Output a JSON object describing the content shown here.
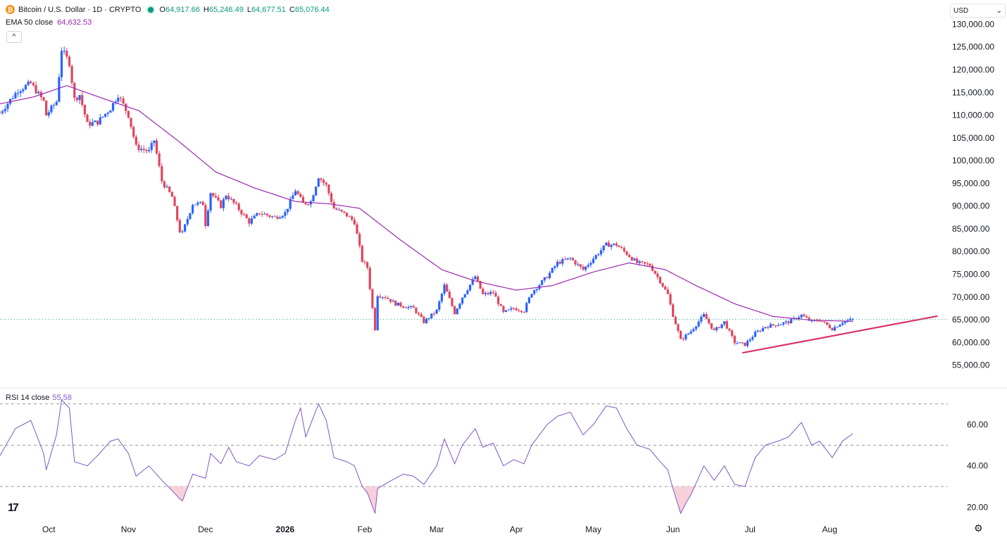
{
  "header": {
    "coin_glyph": "₿",
    "symbol_title": "Bitcoin / U.S. Dollar · 1D · CRYPTO",
    "ohlc": {
      "o_label": "O",
      "o": "64,917.66",
      "h_label": "H",
      "h": "65,246.49",
      "l_label": "L",
      "l": "64,677.51",
      "c_label": "C",
      "c": "65,076.44"
    },
    "ema_label": "EMA 50 close",
    "ema_value": "64,632.53",
    "collapse_glyph": "^"
  },
  "currency": {
    "value": "USD",
    "chevron": "⌄"
  },
  "rsi": {
    "label": "RSI 14 close",
    "value": "55.58"
  },
  "footer": {
    "logo": "17",
    "settings_icon": "⚙"
  },
  "colors": {
    "up": "#2962ff",
    "down": "#e0455e",
    "ema": "#9c27b0",
    "rsi_line": "#7e57c2",
    "trendline": "#d6336c",
    "oversold_fill": "#f6c9d3"
  },
  "chart_data": [
    {
      "type": "candlestick",
      "title": "Bitcoin / U.S. Dollar · 1D · CRYPTO",
      "y_axis": {
        "min": 52000,
        "max": 131000,
        "ticks": [
          55000,
          60000,
          65000,
          70000,
          75000,
          80000,
          85000,
          90000,
          95000,
          100000,
          105000,
          110000,
          115000,
          120000,
          125000,
          130000
        ],
        "tick_labels": [
          "55,000.00",
          "60,000.00",
          "65,000.00",
          "70,000.00",
          "75,000.00",
          "80,000.00",
          "85,000.00",
          "90,000.00",
          "95,000.00",
          "100,000.00",
          "105,000.00",
          "110,000.00",
          "115,000.00",
          "120,000.00",
          "125,000.00",
          "130,000.00"
        ]
      },
      "x_axis": {
        "start_date": "2025-09-12",
        "end_date": "2026-09-16",
        "ticks": [
          {
            "date": "2025-10-01",
            "label": "Oct",
            "bold": false
          },
          {
            "date": "2025-11-01",
            "label": "Nov",
            "bold": false
          },
          {
            "date": "2025-12-01",
            "label": "Dec",
            "bold": false
          },
          {
            "date": "2026-01-01",
            "label": "2026",
            "bold": true
          },
          {
            "date": "2026-02-01",
            "label": "Feb",
            "bold": false
          },
          {
            "date": "2026-03-01",
            "label": "Mar",
            "bold": false
          },
          {
            "date": "2026-04-01",
            "label": "Apr",
            "bold": false
          },
          {
            "date": "2026-05-01",
            "label": "May",
            "bold": false
          },
          {
            "date": "2026-06-01",
            "label": "Jun",
            "bold": false
          },
          {
            "date": "2026-07-01",
            "label": "Jul",
            "bold": false
          },
          {
            "date": "2026-08-01",
            "label": "Aug",
            "bold": false
          }
        ]
      },
      "close_keyframes": [
        {
          "date": "2025-09-12",
          "close": 110500
        },
        {
          "date": "2025-09-19",
          "close": 115500
        },
        {
          "date": "2025-09-24",
          "close": 117000
        },
        {
          "date": "2025-09-29",
          "close": 113000
        },
        {
          "date": "2025-09-30",
          "close": 110000
        },
        {
          "date": "2025-10-04",
          "close": 113000
        },
        {
          "date": "2025-10-06",
          "close": 124500
        },
        {
          "date": "2025-10-09",
          "close": 121500
        },
        {
          "date": "2025-10-11",
          "close": 113500
        },
        {
          "date": "2025-10-13",
          "close": 114500
        },
        {
          "date": "2025-10-16",
          "close": 108000
        },
        {
          "date": "2025-10-20",
          "close": 108500
        },
        {
          "date": "2025-10-25",
          "close": 111500
        },
        {
          "date": "2025-10-28",
          "close": 114500
        },
        {
          "date": "2025-11-01",
          "close": 110000
        },
        {
          "date": "2025-11-04",
          "close": 103000
        },
        {
          "date": "2025-11-09",
          "close": 102000
        },
        {
          "date": "2025-11-11",
          "close": 104500
        },
        {
          "date": "2025-11-14",
          "close": 95500
        },
        {
          "date": "2025-11-18",
          "close": 92000
        },
        {
          "date": "2025-11-21",
          "close": 84500
        },
        {
          "date": "2025-11-22",
          "close": 84000
        },
        {
          "date": "2025-11-26",
          "close": 90500
        },
        {
          "date": "2025-11-30",
          "close": 90500
        },
        {
          "date": "2025-12-01",
          "close": 86000
        },
        {
          "date": "2025-12-03",
          "close": 93000
        },
        {
          "date": "2025-12-07",
          "close": 90000
        },
        {
          "date": "2025-12-09",
          "close": 92500
        },
        {
          "date": "2025-12-13",
          "close": 90000
        },
        {
          "date": "2025-12-18",
          "close": 86500
        },
        {
          "date": "2025-12-22",
          "close": 88500
        },
        {
          "date": "2025-12-28",
          "close": 87500
        },
        {
          "date": "2026-01-01",
          "close": 88500
        },
        {
          "date": "2026-01-05",
          "close": 93500
        },
        {
          "date": "2026-01-08",
          "close": 90500
        },
        {
          "date": "2026-01-11",
          "close": 91000
        },
        {
          "date": "2026-01-14",
          "close": 96500
        },
        {
          "date": "2026-01-17",
          "close": 94500
        },
        {
          "date": "2026-01-20",
          "close": 89500
        },
        {
          "date": "2026-01-25",
          "close": 88000
        },
        {
          "date": "2026-01-28",
          "close": 86500
        },
        {
          "date": "2026-01-31",
          "close": 78000
        },
        {
          "date": "2026-02-02",
          "close": 76500
        },
        {
          "date": "2026-02-05",
          "close": 63000
        },
        {
          "date": "2026-02-06",
          "close": 70500
        },
        {
          "date": "2026-02-09",
          "close": 70000
        },
        {
          "date": "2026-02-13",
          "close": 68500
        },
        {
          "date": "2026-02-16",
          "close": 68000
        },
        {
          "date": "2026-02-20",
          "close": 67500
        },
        {
          "date": "2026-02-24",
          "close": 64500
        },
        {
          "date": "2026-03-01",
          "close": 67000
        },
        {
          "date": "2026-03-04",
          "close": 72500
        },
        {
          "date": "2026-03-08",
          "close": 66500
        },
        {
          "date": "2026-03-11",
          "close": 70000
        },
        {
          "date": "2026-03-16",
          "close": 74500
        },
        {
          "date": "2026-03-19",
          "close": 70500
        },
        {
          "date": "2026-03-23",
          "close": 71000
        },
        {
          "date": "2026-03-27",
          "close": 66500
        },
        {
          "date": "2026-03-31",
          "close": 67500
        },
        {
          "date": "2026-04-04",
          "close": 67000
        },
        {
          "date": "2026-04-07",
          "close": 71000
        },
        {
          "date": "2026-04-13",
          "close": 74500
        },
        {
          "date": "2026-04-17",
          "close": 77500
        },
        {
          "date": "2026-04-22",
          "close": 78500
        },
        {
          "date": "2026-04-27",
          "close": 76000
        },
        {
          "date": "2026-05-01",
          "close": 78500
        },
        {
          "date": "2026-05-06",
          "close": 81500
        },
        {
          "date": "2026-05-10",
          "close": 81500
        },
        {
          "date": "2026-05-14",
          "close": 79500
        },
        {
          "date": "2026-05-18",
          "close": 77500
        },
        {
          "date": "2026-05-23",
          "close": 77000
        },
        {
          "date": "2026-05-27",
          "close": 73500
        },
        {
          "date": "2026-05-30",
          "close": 70500
        },
        {
          "date": "2026-06-01",
          "close": 66000
        },
        {
          "date": "2026-06-04",
          "close": 60500
        },
        {
          "date": "2026-06-08",
          "close": 62500
        },
        {
          "date": "2026-06-13",
          "close": 66000
        },
        {
          "date": "2026-06-17",
          "close": 62500
        },
        {
          "date": "2026-06-21",
          "close": 64500
        },
        {
          "date": "2026-06-25",
          "close": 60000
        },
        {
          "date": "2026-06-29",
          "close": 59500
        },
        {
          "date": "2026-07-03",
          "close": 62000
        },
        {
          "date": "2026-07-07",
          "close": 63500
        },
        {
          "date": "2026-07-12",
          "close": 64000
        },
        {
          "date": "2026-07-16",
          "close": 64500
        },
        {
          "date": "2026-07-21",
          "close": 66000
        },
        {
          "date": "2026-07-25",
          "close": 64500
        },
        {
          "date": "2026-07-28",
          "close": 65000
        },
        {
          "date": "2026-08-02",
          "close": 63000
        },
        {
          "date": "2026-08-06",
          "close": 64500
        },
        {
          "date": "2026-08-10",
          "close": 65076
        }
      ],
      "ema50_keyframes": [
        {
          "date": "2025-09-12",
          "value": 112500
        },
        {
          "date": "2025-09-25",
          "value": 114000
        },
        {
          "date": "2025-10-08",
          "value": 116500
        },
        {
          "date": "2025-10-23",
          "value": 113500
        },
        {
          "date": "2025-11-05",
          "value": 111000
        },
        {
          "date": "2025-11-20",
          "value": 104500
        },
        {
          "date": "2025-12-05",
          "value": 97500
        },
        {
          "date": "2025-12-20",
          "value": 94000
        },
        {
          "date": "2026-01-05",
          "value": 91000
        },
        {
          "date": "2026-01-18",
          "value": 90500
        },
        {
          "date": "2026-01-30",
          "value": 89500
        },
        {
          "date": "2026-02-15",
          "value": 82500
        },
        {
          "date": "2026-03-03",
          "value": 76000
        },
        {
          "date": "2026-03-16",
          "value": 73500
        },
        {
          "date": "2026-04-01",
          "value": 71500
        },
        {
          "date": "2026-04-15",
          "value": 72500
        },
        {
          "date": "2026-05-01",
          "value": 75500
        },
        {
          "date": "2026-05-15",
          "value": 77500
        },
        {
          "date": "2026-05-29",
          "value": 76000
        },
        {
          "date": "2026-06-10",
          "value": 72500
        },
        {
          "date": "2026-06-25",
          "value": 68500
        },
        {
          "date": "2026-07-10",
          "value": 65700
        },
        {
          "date": "2026-07-25",
          "value": 64900
        },
        {
          "date": "2026-08-10",
          "value": 64632
        }
      ],
      "trendline": [
        {
          "date": "2026-06-28",
          "value": 57700
        },
        {
          "date": "2026-09-12",
          "value": 65800
        }
      ],
      "last_price": 65076.44
    },
    {
      "type": "line",
      "title": "RSI 14 close",
      "y_axis": {
        "min": 14,
        "max": 76,
        "ticks": [
          20,
          40,
          60
        ],
        "tick_labels": [
          "20.00",
          "40.00",
          "60.00"
        ],
        "levels": [
          30,
          50,
          70
        ]
      },
      "rsi_keyframes": [
        {
          "date": "2025-09-12",
          "value": 45
        },
        {
          "date": "2025-09-18",
          "value": 58
        },
        {
          "date": "2025-09-24",
          "value": 62
        },
        {
          "date": "2025-09-29",
          "value": 46
        },
        {
          "date": "2025-09-30",
          "value": 38
        },
        {
          "date": "2025-10-04",
          "value": 55
        },
        {
          "date": "2025-10-06",
          "value": 72
        },
        {
          "date": "2025-10-09",
          "value": 68
        },
        {
          "date": "2025-10-11",
          "value": 42
        },
        {
          "date": "2025-10-16",
          "value": 40
        },
        {
          "date": "2025-10-20",
          "value": 45
        },
        {
          "date": "2025-10-25",
          "value": 52
        },
        {
          "date": "2025-10-28",
          "value": 53
        },
        {
          "date": "2025-11-01",
          "value": 46
        },
        {
          "date": "2025-11-04",
          "value": 35
        },
        {
          "date": "2025-11-09",
          "value": 40
        },
        {
          "date": "2025-11-14",
          "value": 33
        },
        {
          "date": "2025-11-18",
          "value": 28
        },
        {
          "date": "2025-11-21",
          "value": 24
        },
        {
          "date": "2025-11-22",
          "value": 23
        },
        {
          "date": "2025-11-26",
          "value": 36
        },
        {
          "date": "2025-12-01",
          "value": 34
        },
        {
          "date": "2025-12-03",
          "value": 46
        },
        {
          "date": "2025-12-07",
          "value": 41
        },
        {
          "date": "2025-12-10",
          "value": 49
        },
        {
          "date": "2025-12-13",
          "value": 42
        },
        {
          "date": "2025-12-18",
          "value": 40
        },
        {
          "date": "2025-12-22",
          "value": 45
        },
        {
          "date": "2025-12-28",
          "value": 43
        },
        {
          "date": "2026-01-01",
          "value": 46
        },
        {
          "date": "2026-01-05",
          "value": 62
        },
        {
          "date": "2026-01-07",
          "value": 68
        },
        {
          "date": "2026-01-09",
          "value": 54
        },
        {
          "date": "2026-01-14",
          "value": 70
        },
        {
          "date": "2026-01-17",
          "value": 62
        },
        {
          "date": "2026-01-20",
          "value": 44
        },
        {
          "date": "2026-01-25",
          "value": 42
        },
        {
          "date": "2026-01-28",
          "value": 40
        },
        {
          "date": "2026-01-31",
          "value": 30
        },
        {
          "date": "2026-02-02",
          "value": 27
        },
        {
          "date": "2026-02-05",
          "value": 17
        },
        {
          "date": "2026-02-06",
          "value": 29
        },
        {
          "date": "2026-02-10",
          "value": 32
        },
        {
          "date": "2026-02-16",
          "value": 36
        },
        {
          "date": "2026-02-20",
          "value": 35
        },
        {
          "date": "2026-02-24",
          "value": 31
        },
        {
          "date": "2026-03-01",
          "value": 40
        },
        {
          "date": "2026-03-04",
          "value": 53
        },
        {
          "date": "2026-03-08",
          "value": 41
        },
        {
          "date": "2026-03-11",
          "value": 50
        },
        {
          "date": "2026-03-16",
          "value": 58
        },
        {
          "date": "2026-03-19",
          "value": 49
        },
        {
          "date": "2026-03-23",
          "value": 51
        },
        {
          "date": "2026-03-27",
          "value": 40
        },
        {
          "date": "2026-03-31",
          "value": 43
        },
        {
          "date": "2026-04-04",
          "value": 41
        },
        {
          "date": "2026-04-07",
          "value": 50
        },
        {
          "date": "2026-04-13",
          "value": 60
        },
        {
          "date": "2026-04-17",
          "value": 64
        },
        {
          "date": "2026-04-22",
          "value": 66
        },
        {
          "date": "2026-04-27",
          "value": 55
        },
        {
          "date": "2026-05-01",
          "value": 60
        },
        {
          "date": "2026-05-06",
          "value": 69
        },
        {
          "date": "2026-05-10",
          "value": 68
        },
        {
          "date": "2026-05-14",
          "value": 58
        },
        {
          "date": "2026-05-18",
          "value": 50
        },
        {
          "date": "2026-05-23",
          "value": 48
        },
        {
          "date": "2026-05-27",
          "value": 42
        },
        {
          "date": "2026-05-30",
          "value": 38
        },
        {
          "date": "2026-06-01",
          "value": 29
        },
        {
          "date": "2026-06-04",
          "value": 17
        },
        {
          "date": "2026-06-06",
          "value": 22
        },
        {
          "date": "2026-06-08",
          "value": 26
        },
        {
          "date": "2026-06-13",
          "value": 40
        },
        {
          "date": "2026-06-17",
          "value": 33
        },
        {
          "date": "2026-06-21",
          "value": 40
        },
        {
          "date": "2026-06-25",
          "value": 31
        },
        {
          "date": "2026-06-29",
          "value": 30
        },
        {
          "date": "2026-07-03",
          "value": 44
        },
        {
          "date": "2026-07-07",
          "value": 50
        },
        {
          "date": "2026-07-12",
          "value": 52
        },
        {
          "date": "2026-07-16",
          "value": 54
        },
        {
          "date": "2026-07-21",
          "value": 61
        },
        {
          "date": "2026-07-25",
          "value": 50
        },
        {
          "date": "2026-07-28",
          "value": 52
        },
        {
          "date": "2026-08-02",
          "value": 44
        },
        {
          "date": "2026-08-06",
          "value": 52
        },
        {
          "date": "2026-08-10",
          "value": 55.58
        }
      ],
      "oversold_level": 30
    }
  ]
}
